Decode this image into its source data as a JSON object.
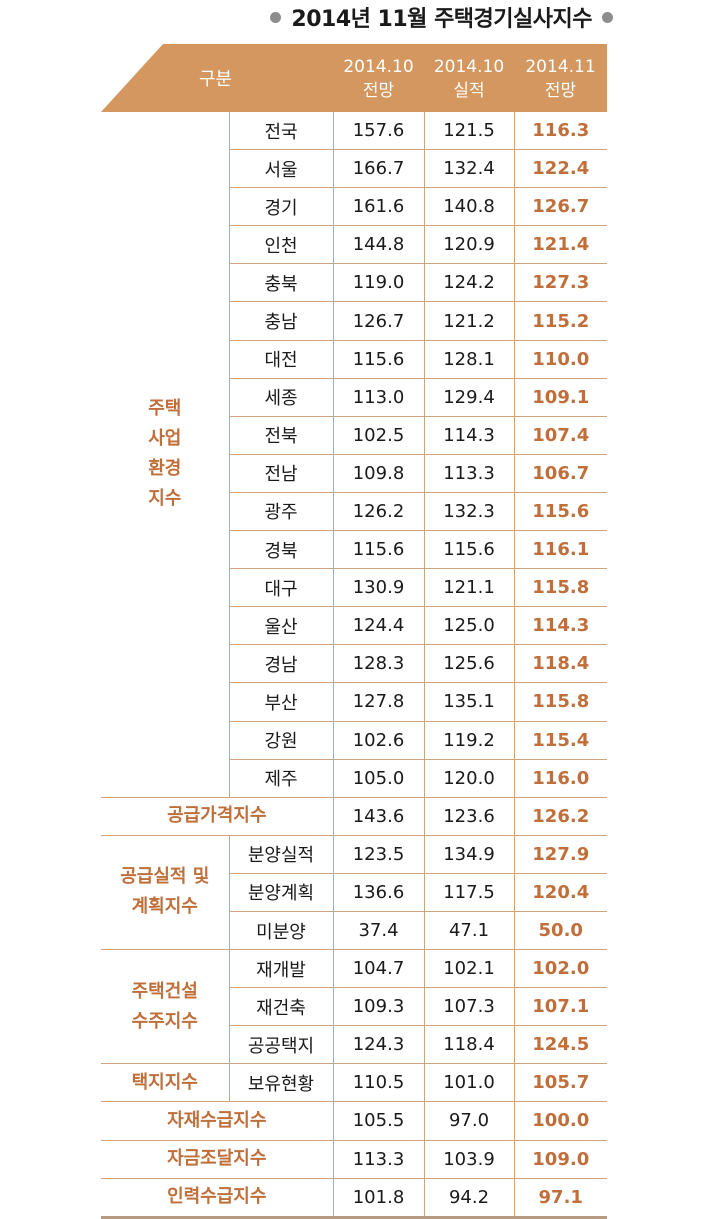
{
  "title": "2014년 11월 주택경기실사지수",
  "header": {
    "category_label": "구분",
    "columns": [
      {
        "line1": "2014.10",
        "line2": "전망"
      },
      {
        "line1": "2014.10",
        "line2": "실적"
      },
      {
        "line1": "2014.11",
        "line2": "전망"
      }
    ]
  },
  "colors": {
    "accent": "#d4975f",
    "highlight_text": "#c06e3a",
    "rule": "#cfa47c"
  },
  "groups": [
    {
      "category": "주택\n사업\n환경\n지수",
      "rows": [
        {
          "name": "전국",
          "v1": "157.6",
          "v2": "121.5",
          "v3": "116.3"
        },
        {
          "name": "서울",
          "v1": "166.7",
          "v2": "132.4",
          "v3": "122.4"
        },
        {
          "name": "경기",
          "v1": "161.6",
          "v2": "140.8",
          "v3": "126.7"
        },
        {
          "name": "인천",
          "v1": "144.8",
          "v2": "120.9",
          "v3": "121.4"
        },
        {
          "name": "충북",
          "v1": "119.0",
          "v2": "124.2",
          "v3": "127.3"
        },
        {
          "name": "충남",
          "v1": "126.7",
          "v2": "121.2",
          "v3": "115.2"
        },
        {
          "name": "대전",
          "v1": "115.6",
          "v2": "128.1",
          "v3": "110.0"
        },
        {
          "name": "세종",
          "v1": "113.0",
          "v2": "129.4",
          "v3": "109.1"
        },
        {
          "name": "전북",
          "v1": "102.5",
          "v2": "114.3",
          "v3": "107.4"
        },
        {
          "name": "전남",
          "v1": "109.8",
          "v2": "113.3",
          "v3": "106.7"
        },
        {
          "name": "광주",
          "v1": "126.2",
          "v2": "132.3",
          "v3": "115.6"
        },
        {
          "name": "경북",
          "v1": "115.6",
          "v2": "115.6",
          "v3": "116.1"
        },
        {
          "name": "대구",
          "v1": "130.9",
          "v2": "121.1",
          "v3": "115.8"
        },
        {
          "name": "울산",
          "v1": "124.4",
          "v2": "125.0",
          "v3": "114.3"
        },
        {
          "name": "경남",
          "v1": "128.3",
          "v2": "125.6",
          "v3": "118.4"
        },
        {
          "name": "부산",
          "v1": "127.8",
          "v2": "135.1",
          "v3": "115.8"
        },
        {
          "name": "강원",
          "v1": "102.6",
          "v2": "119.2",
          "v3": "115.4"
        },
        {
          "name": "제주",
          "v1": "105.0",
          "v2": "120.0",
          "v3": "116.0"
        }
      ]
    },
    {
      "category": "공급가격지수",
      "span": true,
      "rows": [
        {
          "name": "",
          "v1": "143.6",
          "v2": "123.6",
          "v3": "126.2"
        }
      ]
    },
    {
      "category": "공급실적 및\n계획지수",
      "rows": [
        {
          "name": "분양실적",
          "v1": "123.5",
          "v2": "134.9",
          "v3": "127.9"
        },
        {
          "name": "분양계획",
          "v1": "136.6",
          "v2": "117.5",
          "v3": "120.4"
        },
        {
          "name": "미분양",
          "v1": "37.4",
          "v2": "47.1",
          "v3": "50.0"
        }
      ]
    },
    {
      "category": "주택건설\n수주지수",
      "rows": [
        {
          "name": "재개발",
          "v1": "104.7",
          "v2": "102.1",
          "v3": "102.0"
        },
        {
          "name": "재건축",
          "v1": "109.3",
          "v2": "107.3",
          "v3": "107.1"
        },
        {
          "name": "공공택지",
          "v1": "124.3",
          "v2": "118.4",
          "v3": "124.5"
        }
      ]
    },
    {
      "category": "택지지수",
      "rows": [
        {
          "name": "보유현황",
          "v1": "110.5",
          "v2": "101.0",
          "v3": "105.7"
        }
      ]
    },
    {
      "category": "자재수급지수",
      "span": true,
      "rows": [
        {
          "name": "",
          "v1": "105.5",
          "v2": "97.0",
          "v3": "100.0"
        }
      ]
    },
    {
      "category": "자금조달지수",
      "span": true,
      "rows": [
        {
          "name": "",
          "v1": "113.3",
          "v2": "103.9",
          "v3": "109.0"
        }
      ]
    },
    {
      "category": "인력수급지수",
      "span": true,
      "rows": [
        {
          "name": "",
          "v1": "101.8",
          "v2": "94.2",
          "v3": "97.1"
        }
      ]
    }
  ]
}
